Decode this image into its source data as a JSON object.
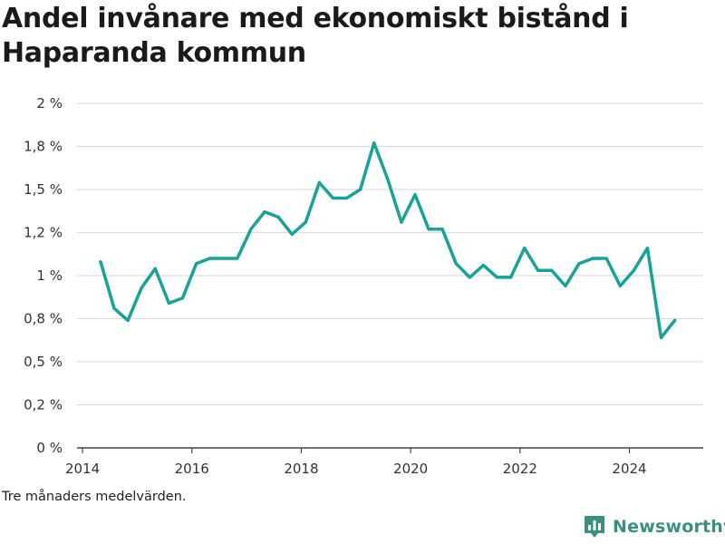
{
  "title": "Andel invånare med ekonomiskt bistånd i Haparanda kommun",
  "note": "Tre månaders medelvärden.",
  "brand": {
    "name": "Newsworthy",
    "icon": "bar-chart-logo-icon"
  },
  "colors": {
    "line": "#17a398",
    "grid": "#dddddd",
    "brand": "#3a8f82"
  },
  "chart_data": {
    "type": "line",
    "title": "Andel invånare med ekonomiskt bistånd i Haparanda kommun",
    "xlabel": "",
    "ylabel": "",
    "xlim": [
      2013.9,
      2025.35
    ],
    "ylim": [
      0,
      2
    ],
    "grid": true,
    "x_ticks": [
      {
        "value": 2014,
        "label": "2014"
      },
      {
        "value": 2016,
        "label": "2016"
      },
      {
        "value": 2018,
        "label": "2018"
      },
      {
        "value": 2020,
        "label": "2020"
      },
      {
        "value": 2022,
        "label": "2022"
      },
      {
        "value": 2024,
        "label": "2024"
      }
    ],
    "y_ticks": [
      {
        "value": 0,
        "label": "0 %"
      },
      {
        "value": 0.25,
        "label": "0,2 %"
      },
      {
        "value": 0.5,
        "label": "0,5 %"
      },
      {
        "value": 0.75,
        "label": "0,8 %"
      },
      {
        "value": 1.0,
        "label": "1 %"
      },
      {
        "value": 1.25,
        "label": "1,2 %"
      },
      {
        "value": 1.5,
        "label": "1,5 %"
      },
      {
        "value": 1.75,
        "label": "1,8 %"
      },
      {
        "value": 2.0,
        "label": "2 %"
      }
    ],
    "series": [
      {
        "x": [
          2014.33,
          2014.58,
          2014.83,
          2015.08,
          2015.33,
          2015.58,
          2015.83,
          2016.08,
          2016.33,
          2016.58,
          2016.83,
          2017.08,
          2017.33,
          2017.58,
          2017.83,
          2018.08,
          2018.33,
          2018.58,
          2018.83,
          2019.08,
          2019.33,
          2019.58,
          2019.83,
          2020.08,
          2020.33,
          2020.58,
          2020.83,
          2021.08,
          2021.33,
          2021.58,
          2021.83,
          2022.08,
          2022.33,
          2022.58,
          2022.83,
          2023.08,
          2023.33,
          2023.58,
          2023.83,
          2024.08,
          2024.33,
          2024.58,
          2024.83
        ],
        "values": [
          1.08,
          0.81,
          0.74,
          0.93,
          1.04,
          0.84,
          0.87,
          1.07,
          1.1,
          1.1,
          1.1,
          1.27,
          1.37,
          1.34,
          1.24,
          1.31,
          1.54,
          1.45,
          1.45,
          1.5,
          1.77,
          1.56,
          1.31,
          1.47,
          1.27,
          1.27,
          1.07,
          0.99,
          1.06,
          0.99,
          0.99,
          1.16,
          1.03,
          1.03,
          0.94,
          1.07,
          1.1,
          1.1,
          0.94,
          1.03,
          1.16,
          0.64,
          0.74
        ]
      }
    ]
  }
}
